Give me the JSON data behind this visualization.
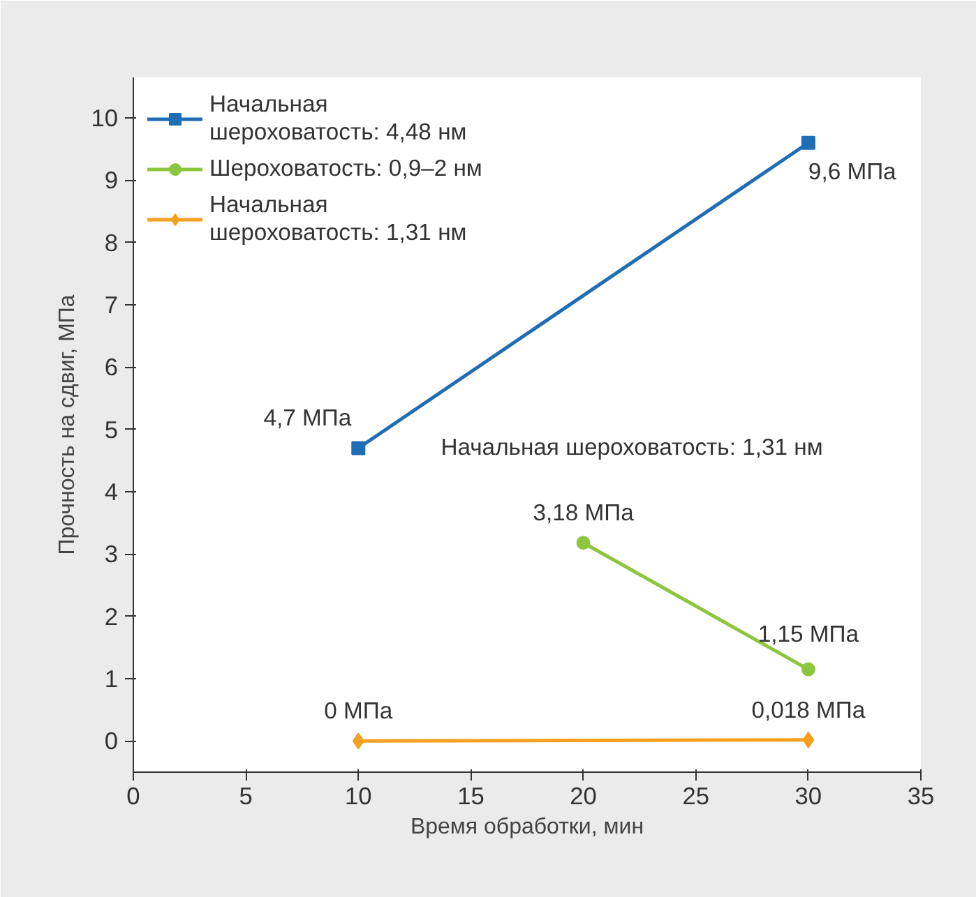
{
  "chart_data": {
    "type": "line",
    "xlabel": "Время обработки, мин",
    "ylabel": "Прочность на сдвиг, МПа",
    "xlim": [
      0,
      35
    ],
    "xticks": [
      0,
      5,
      10,
      15,
      20,
      25,
      30,
      35
    ],
    "ylim": [
      -0.5,
      10.65
    ],
    "yticks": [
      0,
      1,
      2,
      3,
      4,
      5,
      6,
      7,
      8,
      9,
      10
    ],
    "grid": false,
    "legend": "top left",
    "line_style": "solid",
    "series": [
      {
        "name": "Начальная\nшероховатость: 4,48 нм",
        "color": "#1f6db5",
        "marker": "square",
        "x": [
          10,
          30
        ],
        "values": [
          4.7,
          9.6
        ],
        "value_labels": [
          "4,7 МПа",
          "9,6 МПа"
        ]
      },
      {
        "name": "Шероховатость: 0,9–2 нм",
        "color": "#8cc63f",
        "marker": "circle",
        "x": [
          20,
          30
        ],
        "values": [
          3.18,
          1.15
        ],
        "value_labels": [
          "3,18 МПа",
          "1,15 МПа"
        ]
      },
      {
        "name": "Начальная\nшероховатость: 1,31 нм",
        "color": "#f5a01f",
        "marker": "diamond",
        "x": [
          10,
          30
        ],
        "values": [
          0,
          0.018
        ],
        "value_labels": [
          "0 МПа",
          "0,018 МПа"
        ]
      }
    ],
    "annotations": [
      "Начальная шероховатость: 1,31 нм"
    ]
  }
}
